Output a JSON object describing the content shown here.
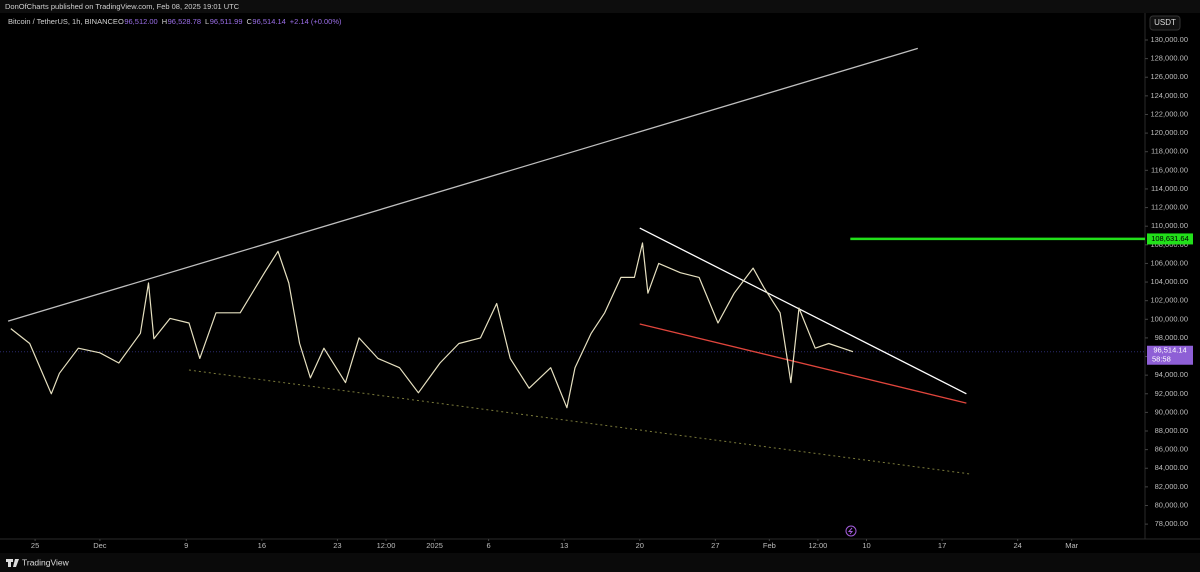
{
  "header": {
    "publisher": "DonOfCharts published on TradingView.com, Feb 08, 2025 19:01 UTC",
    "symbol": "Bitcoin / TetherUS, 1h, BINANCE",
    "ohlc": [
      {
        "label": "O",
        "value": "96,512.00"
      },
      {
        "label": "H",
        "value": "96,528.78"
      },
      {
        "label": "L",
        "value": "96,511.99"
      },
      {
        "label": "C",
        "value": "96,514.14"
      }
    ],
    "change": "+2.14 (+0.00%)",
    "currency": "USDT"
  },
  "footer": {
    "brand": "TradingView"
  },
  "chart_data": {
    "type": "line",
    "x": [
      "2024-11-22T18:00",
      "2024-11-24T12:00",
      "2024-11-26T12:00",
      "2024-11-27T06:00",
      "2024-11-29T00:00",
      "2024-12-01T00:00",
      "2024-12-02T18:00",
      "2024-12-04T18:00",
      "2024-12-05T12:00",
      "2024-12-06T00:00",
      "2024-12-07T12:00",
      "2024-12-09T06:00",
      "2024-12-10T06:00",
      "2024-12-11T18:00",
      "2024-12-14T00:00",
      "2024-12-16T06:00",
      "2024-12-17T12:00",
      "2024-12-18T12:00",
      "2024-12-19T12:00",
      "2024-12-20T12:00",
      "2024-12-21T18:00",
      "2024-12-23T18:00",
      "2024-12-25T00:00",
      "2024-12-26T18:00",
      "2024-12-28T18:00",
      "2024-12-30T12:00",
      "2025-01-01T12:00",
      "2025-01-03T06:00",
      "2025-01-05T06:00",
      "2025-01-06T18:00",
      "2025-01-08T00:00",
      "2025-01-09T18:00",
      "2025-01-11T18:00",
      "2025-01-13T06:00",
      "2025-01-14T00:00",
      "2025-01-15T12:00",
      "2025-01-16T18:00",
      "2025-01-18T06:00",
      "2025-01-19T12:00",
      "2025-01-20T06:00",
      "2025-01-20T18:00",
      "2025-01-21T18:00",
      "2025-01-23T18:00",
      "2025-01-25T12:00",
      "2025-01-27T06:00",
      "2025-01-28T18:00",
      "2025-01-30T12:00",
      "2025-01-31T12:00",
      "2025-02-02T00:00",
      "2025-02-03T00:00",
      "2025-02-03T18:00",
      "2025-02-05T06:00",
      "2025-02-06T12:00",
      "2025-02-08T18:00"
    ],
    "series": [
      {
        "name": "Bitcoin / TetherUS",
        "color": "#e6e0c0",
        "values": [
          99000,
          97400,
          92000,
          94200,
          96900,
          96400,
          95300,
          98500,
          103900,
          97900,
          100100,
          99600,
          95800,
          100700,
          100700,
          105000,
          107300,
          103900,
          97400,
          93700,
          96900,
          93200,
          98000,
          95800,
          94800,
          92100,
          95300,
          97400,
          98000,
          101700,
          95800,
          92600,
          94800,
          90500,
          94800,
          98500,
          100700,
          104500,
          104500,
          108200,
          102800,
          106000,
          105000,
          104500,
          99600,
          102800,
          105500,
          103400,
          100700,
          93200,
          101200,
          96900,
          97400,
          96514.14
        ]
      }
    ],
    "last_price_label": "96,514.14",
    "countdown": "58:58",
    "level": {
      "value": 108631.64,
      "label": "108,631.64",
      "color": "#22e01a",
      "start": "2025-02-08T12:00"
    },
    "trendlines": [
      {
        "color": "#bfbfbf",
        "dash": false,
        "points": [
          [
            "2024-11-22T12:00",
            99800
          ],
          [
            "2025-02-14T18:00",
            129100
          ]
        ]
      },
      {
        "color": "#ffffff",
        "dash": false,
        "points": [
          [
            "2025-01-20T00:00",
            109800
          ],
          [
            "2025-02-19T06:00",
            92000
          ]
        ]
      },
      {
        "color": "#e0453c",
        "dash": false,
        "points": [
          [
            "2025-01-20T00:00",
            99500
          ],
          [
            "2025-02-19T06:00",
            91000
          ]
        ]
      },
      {
        "color": "#7a7a3a",
        "dash": true,
        "points": [
          [
            "2024-12-09T06:00",
            94550
          ],
          [
            "2025-02-19T12:00",
            83400
          ]
        ]
      }
    ],
    "xlim": [
      "2024-11-21T18:00",
      "2025-03-07T19:00"
    ],
    "xticks": [
      {
        "value": "2024-11-25T00:00",
        "label": "25"
      },
      {
        "value": "2024-12-01T00:00",
        "label": "Dec"
      },
      {
        "value": "2024-12-09T00:00",
        "label": "9"
      },
      {
        "value": "2024-12-16T00:00",
        "label": "16"
      },
      {
        "value": "2024-12-23T00:00",
        "label": "23"
      },
      {
        "value": "2024-12-27T12:00",
        "label": "12:00"
      },
      {
        "value": "2025-01-01T00:00",
        "label": "2025"
      },
      {
        "value": "2025-01-06T00:00",
        "label": "6"
      },
      {
        "value": "2025-01-13T00:00",
        "label": "13"
      },
      {
        "value": "2025-01-20T00:00",
        "label": "20"
      },
      {
        "value": "2025-01-27T00:00",
        "label": "27"
      },
      {
        "value": "2025-02-01T00:00",
        "label": "Feb"
      },
      {
        "value": "2025-02-05T12:00",
        "label": "12:00"
      },
      {
        "value": "2025-02-10T00:00",
        "label": "10"
      },
      {
        "value": "2025-02-17T00:00",
        "label": "17"
      },
      {
        "value": "2025-02-24T00:00",
        "label": "24"
      },
      {
        "value": "2025-03-01T00:00",
        "label": "Mar"
      }
    ],
    "ylim": [
      76400,
      132900
    ],
    "yticks": [
      {
        "value": 78000,
        "label": "78,000.00"
      },
      {
        "value": 80000,
        "label": "80,000.00"
      },
      {
        "value": 82000,
        "label": "82,000.00"
      },
      {
        "value": 84000,
        "label": "84,000.00"
      },
      {
        "value": 86000,
        "label": "86,000.00"
      },
      {
        "value": 88000,
        "label": "88,000.00"
      },
      {
        "value": 90000,
        "label": "90,000.00"
      },
      {
        "value": 92000,
        "label": "92,000.00"
      },
      {
        "value": 94000,
        "label": "94,000.00"
      },
      {
        "value": 96000,
        "label": "96,000.00"
      },
      {
        "value": 98000,
        "label": "98,000.00"
      },
      {
        "value": 100000,
        "label": "100,000.00"
      },
      {
        "value": 102000,
        "label": "102,000.00"
      },
      {
        "value": 104000,
        "label": "104,000.00"
      },
      {
        "value": 106000,
        "label": "106,000.00"
      },
      {
        "value": 108000,
        "label": "108,000.00"
      },
      {
        "value": 110000,
        "label": "110,000.00"
      },
      {
        "value": 112000,
        "label": "112,000.00"
      },
      {
        "value": 114000,
        "label": "114,000.00"
      },
      {
        "value": 116000,
        "label": "116,000.00"
      },
      {
        "value": 118000,
        "label": "118,000.00"
      },
      {
        "value": 120000,
        "label": "120,000.00"
      },
      {
        "value": 122000,
        "label": "122,000.00"
      },
      {
        "value": 124000,
        "label": "124,000.00"
      },
      {
        "value": 126000,
        "label": "126,000.00"
      },
      {
        "value": 128000,
        "label": "128,000.00"
      },
      {
        "value": 130000,
        "label": "130,000.00"
      }
    ],
    "grid": false
  }
}
